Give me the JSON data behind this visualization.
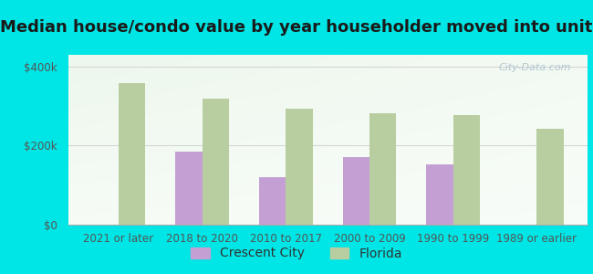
{
  "title": "Median house/condo value by year householder moved into unit",
  "categories": [
    "2021 or later",
    "2018 to 2020",
    "2010 to 2017",
    "2000 to 2009",
    "1990 to 1999",
    "1989 or earlier"
  ],
  "crescent_city": [
    null,
    185000,
    120000,
    172000,
    152000,
    null
  ],
  "florida": [
    358000,
    318000,
    293000,
    283000,
    278000,
    243000
  ],
  "crescent_city_color": "#c49fd4",
  "florida_color": "#b8cea0",
  "background_color": "#00e5e5",
  "plot_bg_top_left": "#e8f5e0",
  "plot_bg_bottom_right": "#f8fff8",
  "ylabel_ticks": [
    0,
    200000,
    400000
  ],
  "ylabel_labels": [
    "$0",
    "$200k",
    "$400k"
  ],
  "ylim": [
    0,
    430000
  ],
  "bar_width": 0.32,
  "legend_crescent": "Crescent City",
  "legend_florida": "Florida",
  "title_fontsize": 13,
  "tick_fontsize": 8.5,
  "legend_fontsize": 10,
  "watermark_text": "City-Data.com",
  "watermark_color": "#a0b8c8"
}
